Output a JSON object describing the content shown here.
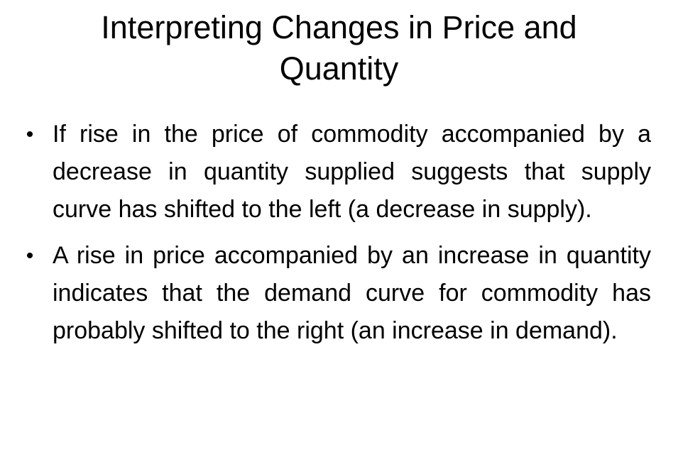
{
  "slide": {
    "title": "Interpreting Changes in Price and Quantity",
    "bullet_symbol": "•",
    "bullets": [
      {
        "text": "If rise in the price of commodity accompanied by a decrease in quantity supplied suggests that supply curve has shifted to the left (a decrease in supply)."
      },
      {
        "text": "A rise in price accompanied by an increase in quantity indicates that the demand curve for commodity has probably shifted to the right (an increase in demand)."
      }
    ]
  }
}
